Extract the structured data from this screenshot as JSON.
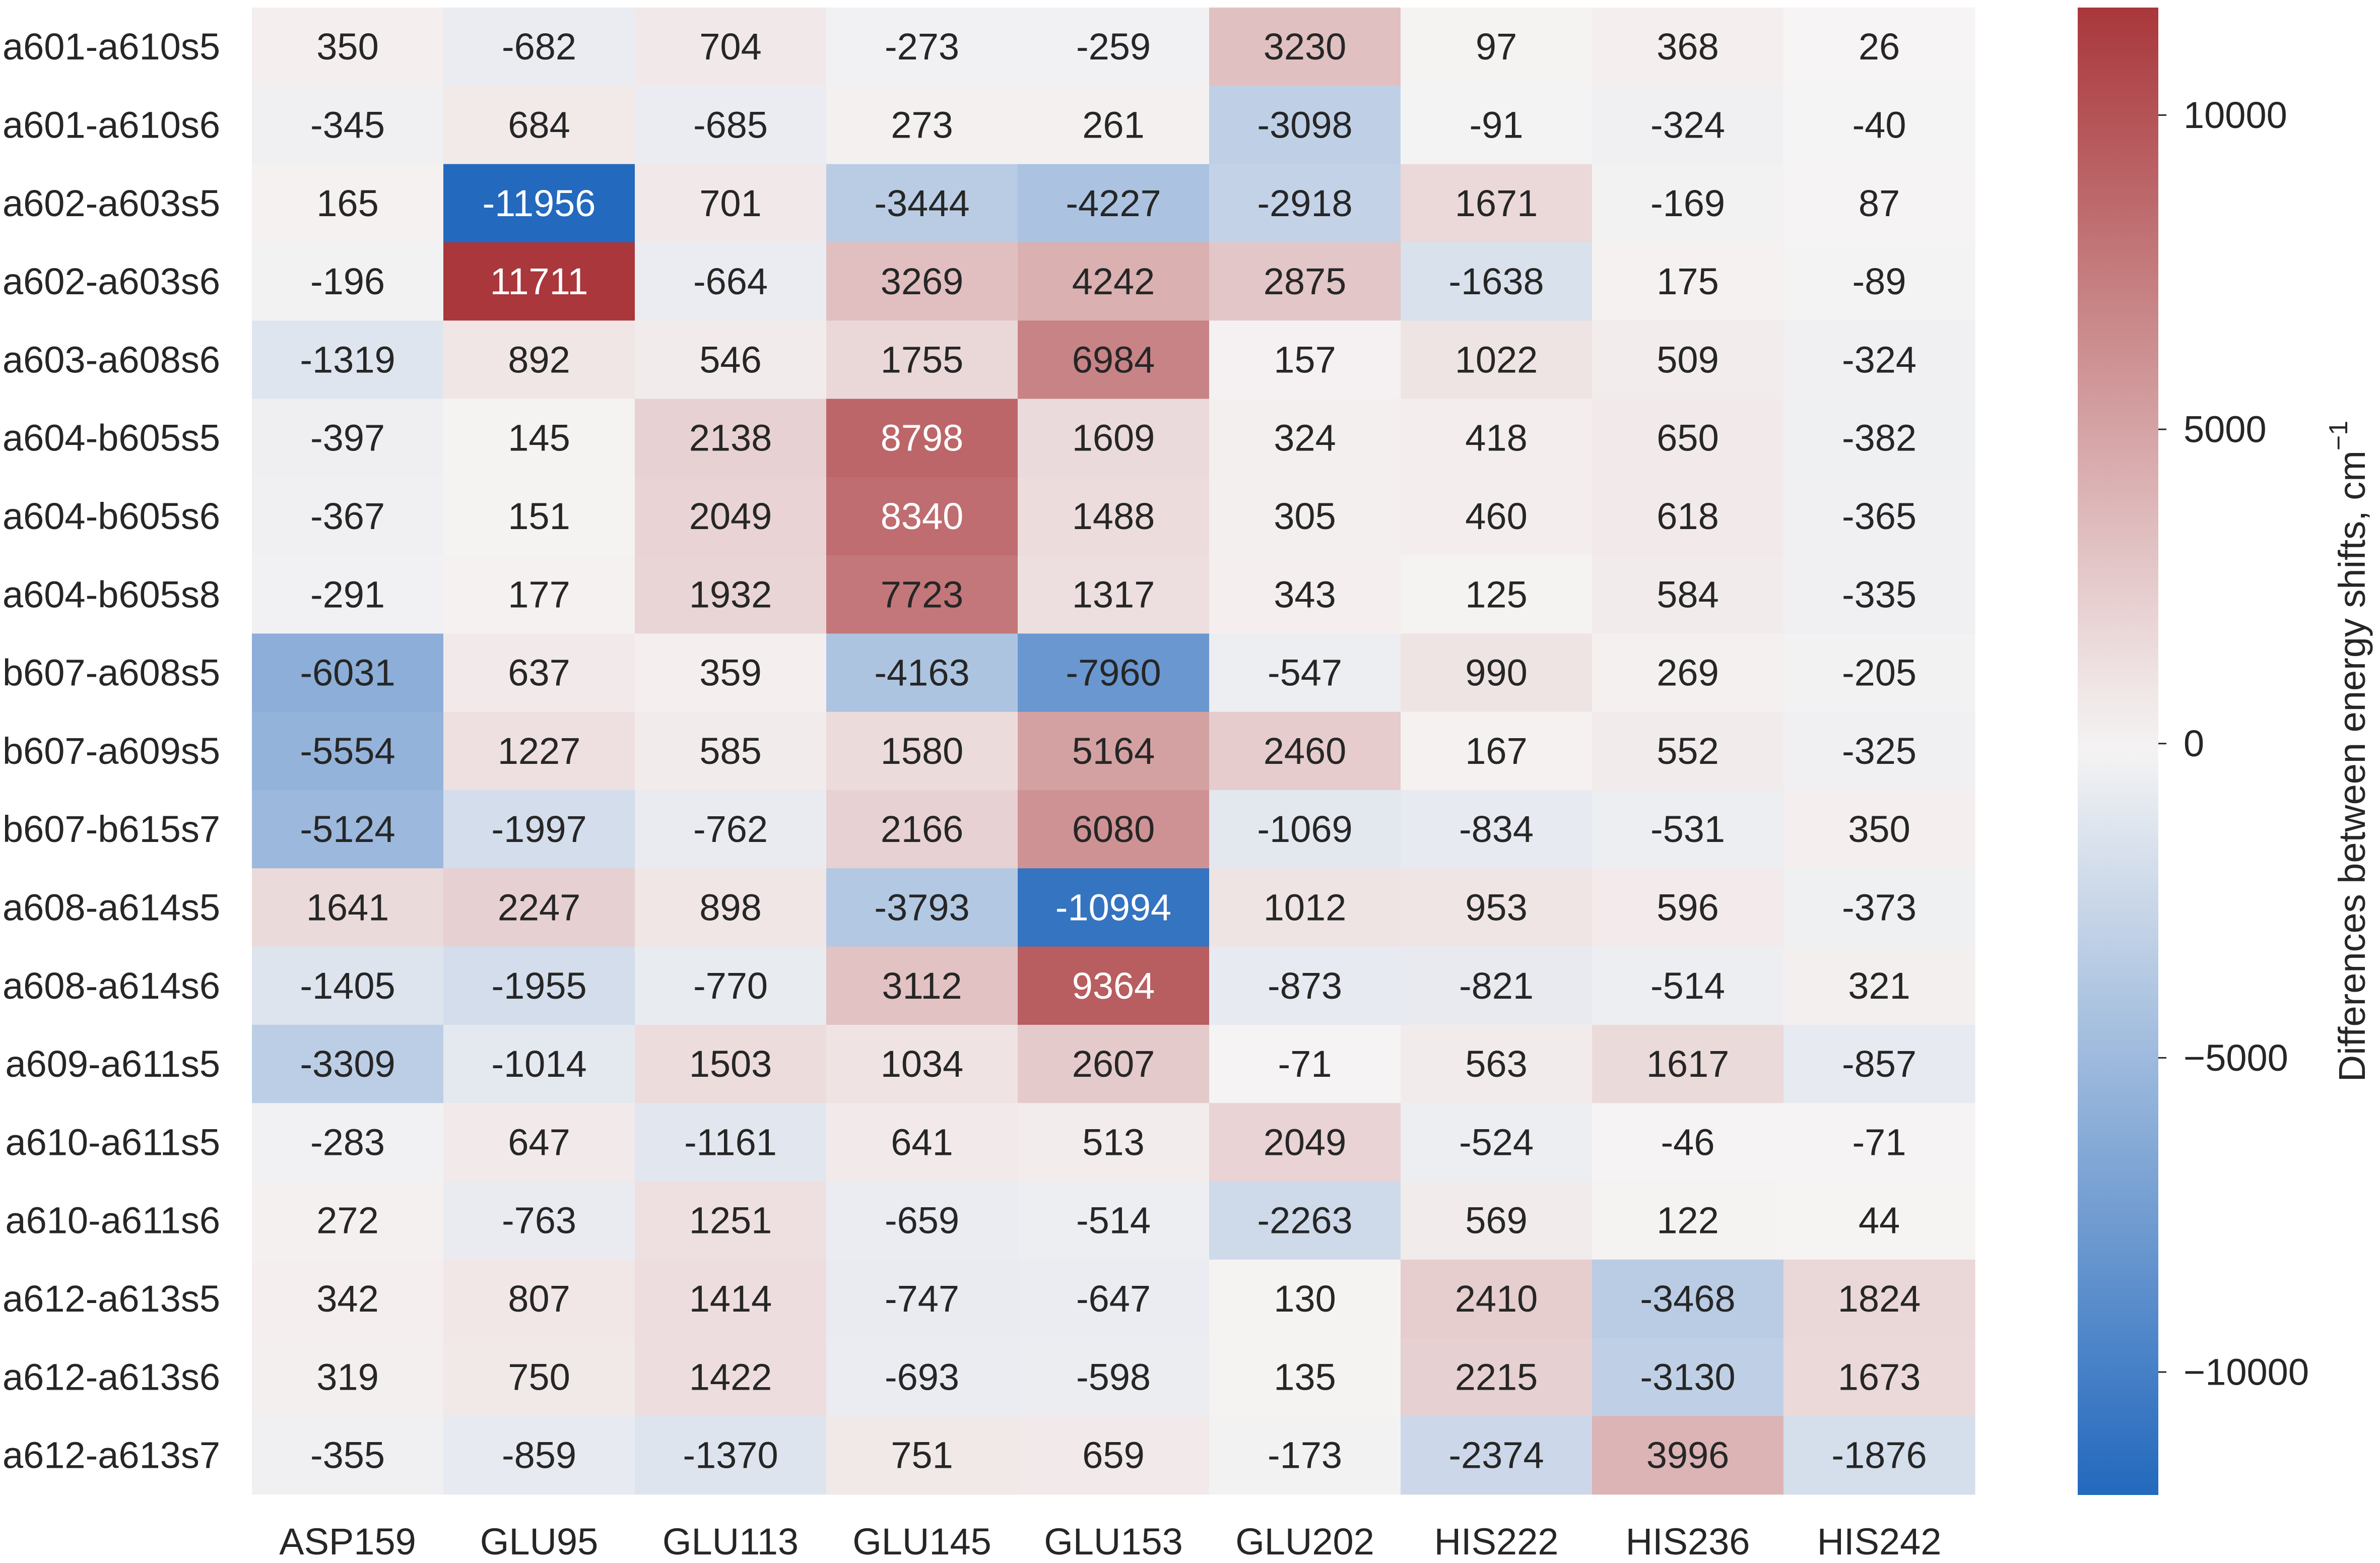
{
  "chart_data": {
    "type": "heatmap",
    "title": "",
    "xlabel": "",
    "ylabel": "",
    "columns": [
      "ASP159",
      "GLU95",
      "GLU113",
      "GLU145",
      "GLU153",
      "GLU202",
      "HIS222",
      "HIS236",
      "HIS242"
    ],
    "rows": [
      "a601-a610s5",
      "a601-a610s6",
      "a602-a603s5",
      "a602-a603s6",
      "a603-a608s6",
      "a604-b605s5",
      "a604-b605s6",
      "a604-b605s8",
      "b607-a608s5",
      "b607-a609s5",
      "b607-b615s7",
      "a608-a614s5",
      "a608-a614s6",
      "a609-a611s5",
      "a610-a611s5",
      "a610-a611s6",
      "a612-a613s5",
      "a612-a613s6",
      "a612-a613s7"
    ],
    "values": [
      [
        350,
        -682,
        704,
        -273,
        -259,
        3230,
        97,
        368,
        26
      ],
      [
        -345,
        684,
        -685,
        273,
        261,
        -3098,
        -91,
        -324,
        -40
      ],
      [
        165,
        -11956,
        701,
        -3444,
        -4227,
        -2918,
        1671,
        -169,
        87
      ],
      [
        -196,
        11711,
        -664,
        3269,
        4242,
        2875,
        -1638,
        175,
        -89
      ],
      [
        -1319,
        892,
        546,
        1755,
        6984,
        157,
        1022,
        509,
        -324
      ],
      [
        -397,
        145,
        2138,
        8798,
        1609,
        324,
        418,
        650,
        -382
      ],
      [
        -367,
        151,
        2049,
        8340,
        1488,
        305,
        460,
        618,
        -365
      ],
      [
        -291,
        177,
        1932,
        7723,
        1317,
        343,
        125,
        584,
        -335
      ],
      [
        -6031,
        637,
        359,
        -4163,
        -7960,
        -547,
        990,
        269,
        -205
      ],
      [
        -5554,
        1227,
        585,
        1580,
        5164,
        2460,
        167,
        552,
        -325
      ],
      [
        -5124,
        -1997,
        -762,
        2166,
        6080,
        -1069,
        -834,
        -531,
        350
      ],
      [
        1641,
        2247,
        898,
        -3793,
        -10994,
        1012,
        953,
        596,
        -373
      ],
      [
        -1405,
        -1955,
        -770,
        3112,
        9364,
        -873,
        -821,
        -514,
        321
      ],
      [
        -3309,
        -1014,
        1503,
        1034,
        2607,
        -71,
        563,
        1617,
        -857
      ],
      [
        -283,
        647,
        -1161,
        641,
        513,
        2049,
        -524,
        -46,
        -71
      ],
      [
        272,
        -763,
        1251,
        -659,
        -514,
        -2263,
        569,
        122,
        44
      ],
      [
        342,
        807,
        1414,
        -747,
        -647,
        130,
        2410,
        -3468,
        1824
      ],
      [
        319,
        750,
        1422,
        -693,
        -598,
        135,
        2215,
        -3130,
        1673
      ],
      [
        -355,
        -859,
        -1370,
        751,
        659,
        -173,
        -2374,
        3996,
        -1876
      ]
    ],
    "colorbar": {
      "label": "Differences between energy shifts, cm",
      "label_superscript": "−1",
      "range": [
        -11956,
        11711
      ],
      "ticks": [
        10000,
        5000,
        0,
        -5000,
        -10000
      ],
      "tick_labels": [
        "10000",
        "5000",
        "0",
        "−5000",
        "−10000"
      ],
      "colormap": "vlag",
      "low_color": "#2369bd",
      "mid_color": "#f6f4f4",
      "high_color": "#a9373b"
    },
    "annotations": true,
    "grid": false
  }
}
